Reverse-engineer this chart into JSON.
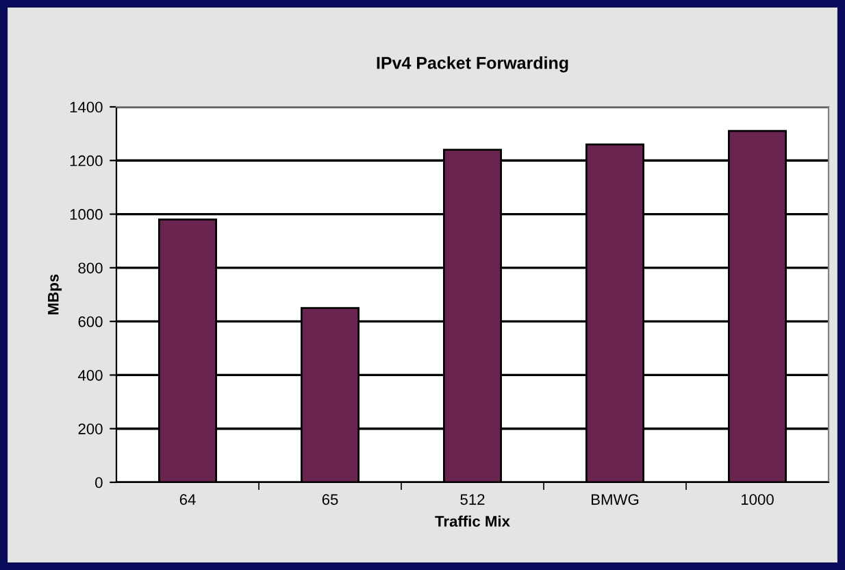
{
  "chart_data": {
    "type": "bar",
    "title": "IPv4 Packet Forwarding",
    "xlabel": "Traffic Mix",
    "ylabel": "MBps",
    "categories": [
      "64",
      "65",
      "512",
      "BMWG",
      "1000"
    ],
    "values": [
      980,
      650,
      1240,
      1260,
      1310
    ],
    "color": "#6a2450",
    "ylim": [
      0,
      1400
    ],
    "yticks": [
      0,
      200,
      400,
      600,
      800,
      1000,
      1200,
      1400
    ],
    "grid": "y",
    "legend": false
  }
}
